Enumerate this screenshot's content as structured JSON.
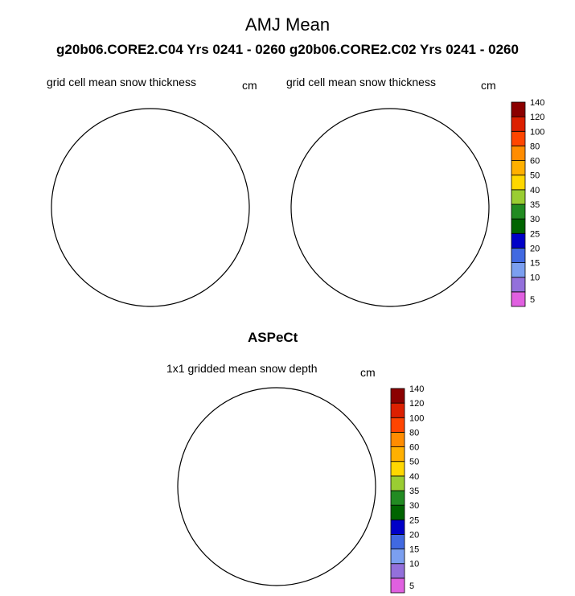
{
  "figure": {
    "title": "AMJ Mean",
    "subtitle": "g20b06.CORE2.C04  Yrs 0241 - 0260 g20b06.CORE2.C02  Yrs 0241 - 0260"
  },
  "panels": [
    {
      "label": "grid cell mean snow thickness",
      "unit": "cm"
    },
    {
      "label": "grid cell mean snow thickness",
      "unit": "cm"
    },
    {
      "label": "1x1 gridded mean snow depth",
      "unit": "cm"
    }
  ],
  "observations": {
    "title": "ASPeCt"
  },
  "colorbar": {
    "levels": [
      "5",
      "10",
      "15",
      "20",
      "25",
      "30",
      "35",
      "40",
      "50",
      "60",
      "80",
      "100",
      "120",
      "140"
    ],
    "colors": [
      "#e060e0",
      "#9370db",
      "#7b9ff0",
      "#4169e1",
      "#0000c8",
      "#006400",
      "#228b22",
      "#9acd32",
      "#ffd700",
      "#ffb000",
      "#ff8c00",
      "#ff4500",
      "#dc2000",
      "#8b0000"
    ]
  },
  "map_colors": {
    "land": "#c8c8c8",
    "coast": "#000000",
    "grid": "#000000"
  }
}
